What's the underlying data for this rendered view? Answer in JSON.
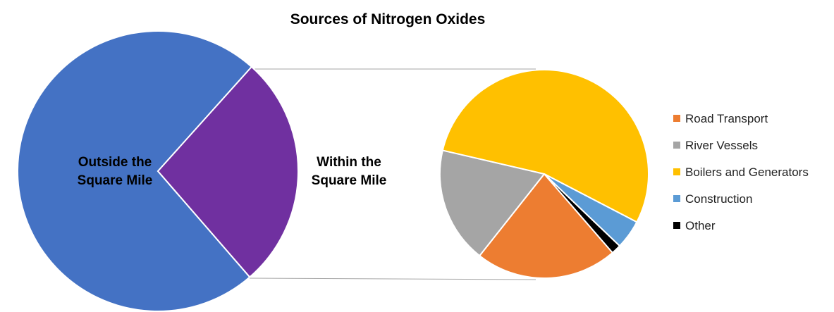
{
  "chart_data": [
    {
      "type": "pie",
      "title": "Sources of Nitrogen Oxides",
      "categories": [
        "Outside the Square Mile",
        "Within the Square Mile"
      ],
      "values": [
        73,
        27
      ],
      "colors": [
        "#4472c4",
        "#7030a0"
      ]
    },
    {
      "type": "pie",
      "categories": [
        "Road Transport",
        "River Vessels",
        "Boilers and Generators",
        "Construction",
        "Other"
      ],
      "values": [
        22,
        18,
        54,
        4.5,
        1.5
      ],
      "colors": [
        "#ed7d31",
        "#a5a5a5",
        "#ffc000",
        "#5b9bd5",
        "#000000"
      ],
      "legend": "right"
    }
  ]
}
